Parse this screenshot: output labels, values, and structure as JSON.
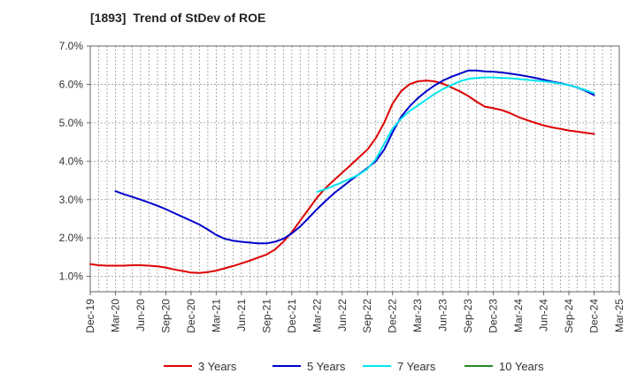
{
  "chart_data": {
    "type": "line",
    "title": "[1893]  Trend of StDev of ROE",
    "xlabel": "",
    "ylabel": "",
    "x_ticks": [
      "Dec-19",
      "Mar-20",
      "Jun-20",
      "Sep-20",
      "Dec-20",
      "Mar-21",
      "Jun-21",
      "Sep-21",
      "Dec-21",
      "Mar-22",
      "Jun-22",
      "Sep-22",
      "Dec-22",
      "Mar-23",
      "Jun-23",
      "Sep-23",
      "Dec-23",
      "Mar-24",
      "Jun-24",
      "Sep-24",
      "Dec-24",
      "Mar-25"
    ],
    "y_ticks": [
      "1.0%",
      "2.0%",
      "3.0%",
      "4.0%",
      "5.0%",
      "6.0%",
      "7.0%"
    ],
    "ylim": [
      0.6,
      7.0
    ],
    "y_unit": "%",
    "grid": true,
    "legend_position": "bottom",
    "series": [
      {
        "name": "3 Years",
        "color": "#dd0000",
        "points": [
          [
            "Dec-19",
            1.32
          ],
          [
            "Jan-20",
            1.29
          ],
          [
            "Feb-20",
            1.28
          ],
          [
            "Mar-20",
            1.28
          ],
          [
            "Apr-20",
            1.28
          ],
          [
            "May-20",
            1.29
          ],
          [
            "Jun-20",
            1.29
          ],
          [
            "Jul-20",
            1.28
          ],
          [
            "Aug-20",
            1.26
          ],
          [
            "Sep-20",
            1.23
          ],
          [
            "Oct-20",
            1.18
          ],
          [
            "Nov-20",
            1.14
          ],
          [
            "Dec-20",
            1.1
          ],
          [
            "Jan-21",
            1.09
          ],
          [
            "Feb-21",
            1.11
          ],
          [
            "Mar-21",
            1.15
          ],
          [
            "Apr-21",
            1.21
          ],
          [
            "May-21",
            1.27
          ],
          [
            "Jun-21",
            1.34
          ],
          [
            "Jul-21",
            1.41
          ],
          [
            "Aug-21",
            1.49
          ],
          [
            "Sep-21",
            1.57
          ],
          [
            "Oct-21",
            1.7
          ],
          [
            "Nov-21",
            1.9
          ],
          [
            "Dec-21",
            2.15
          ],
          [
            "Jan-22",
            2.45
          ],
          [
            "Feb-22",
            2.75
          ],
          [
            "Mar-22",
            3.05
          ],
          [
            "Apr-22",
            3.3
          ],
          [
            "May-22",
            3.5
          ],
          [
            "Jun-22",
            3.7
          ],
          [
            "Jul-22",
            3.9
          ],
          [
            "Aug-22",
            4.1
          ],
          [
            "Sep-22",
            4.3
          ],
          [
            "Oct-22",
            4.6
          ],
          [
            "Nov-22",
            5.0
          ],
          [
            "Dec-22",
            5.5
          ],
          [
            "Jan-23",
            5.82
          ],
          [
            "Feb-23",
            6.0
          ],
          [
            "Mar-23",
            6.08
          ],
          [
            "Apr-23",
            6.1
          ],
          [
            "May-23",
            6.08
          ],
          [
            "Jun-23",
            6.02
          ],
          [
            "Jul-23",
            5.92
          ],
          [
            "Aug-23",
            5.82
          ],
          [
            "Sep-23",
            5.7
          ],
          [
            "Oct-23",
            5.55
          ],
          [
            "Nov-23",
            5.42
          ],
          [
            "Dec-23",
            5.38
          ],
          [
            "Jan-24",
            5.33
          ],
          [
            "Feb-24",
            5.25
          ],
          [
            "Mar-24",
            5.15
          ],
          [
            "Apr-24",
            5.07
          ],
          [
            "May-24",
            5.0
          ],
          [
            "Jun-24",
            4.93
          ],
          [
            "Jul-24",
            4.88
          ],
          [
            "Aug-24",
            4.84
          ],
          [
            "Sep-24",
            4.8
          ],
          [
            "Oct-24",
            4.77
          ],
          [
            "Nov-24",
            4.74
          ],
          [
            "Dec-24",
            4.71
          ]
        ]
      },
      {
        "name": "5 Years",
        "color": "#0000cc",
        "points": [
          [
            "Mar-20",
            3.22
          ],
          [
            "Apr-20",
            3.14
          ],
          [
            "May-20",
            3.07
          ],
          [
            "Jun-20",
            3.0
          ],
          [
            "Jul-20",
            2.92
          ],
          [
            "Aug-20",
            2.84
          ],
          [
            "Sep-20",
            2.75
          ],
          [
            "Oct-20",
            2.65
          ],
          [
            "Nov-20",
            2.55
          ],
          [
            "Dec-20",
            2.45
          ],
          [
            "Jan-21",
            2.35
          ],
          [
            "Feb-21",
            2.22
          ],
          [
            "Mar-21",
            2.08
          ],
          [
            "Apr-21",
            1.98
          ],
          [
            "May-21",
            1.93
          ],
          [
            "Jun-21",
            1.9
          ],
          [
            "Jul-21",
            1.88
          ],
          [
            "Aug-21",
            1.86
          ],
          [
            "Sep-21",
            1.86
          ],
          [
            "Oct-21",
            1.9
          ],
          [
            "Nov-21",
            1.98
          ],
          [
            "Dec-21",
            2.12
          ],
          [
            "Jan-22",
            2.3
          ],
          [
            "Feb-22",
            2.52
          ],
          [
            "Mar-22",
            2.75
          ],
          [
            "Apr-22",
            2.96
          ],
          [
            "May-22",
            3.16
          ],
          [
            "Jun-22",
            3.33
          ],
          [
            "Jul-22",
            3.5
          ],
          [
            "Aug-22",
            3.66
          ],
          [
            "Sep-22",
            3.82
          ],
          [
            "Oct-22",
            4.0
          ],
          [
            "Nov-22",
            4.3
          ],
          [
            "Dec-22",
            4.75
          ],
          [
            "Jan-23",
            5.15
          ],
          [
            "Feb-23",
            5.42
          ],
          [
            "Mar-23",
            5.64
          ],
          [
            "Apr-23",
            5.82
          ],
          [
            "May-23",
            5.97
          ],
          [
            "Jun-23",
            6.1
          ],
          [
            "Jul-23",
            6.2
          ],
          [
            "Aug-23",
            6.28
          ],
          [
            "Sep-23",
            6.36
          ],
          [
            "Oct-23",
            6.36
          ],
          [
            "Nov-23",
            6.34
          ],
          [
            "Dec-23",
            6.33
          ],
          [
            "Jan-24",
            6.31
          ],
          [
            "Feb-24",
            6.28
          ],
          [
            "Mar-24",
            6.25
          ],
          [
            "Apr-24",
            6.21
          ],
          [
            "May-24",
            6.17
          ],
          [
            "Jun-24",
            6.12
          ],
          [
            "Jul-24",
            6.07
          ],
          [
            "Aug-24",
            6.03
          ],
          [
            "Sep-24",
            5.98
          ],
          [
            "Oct-24",
            5.92
          ],
          [
            "Nov-24",
            5.83
          ],
          [
            "Dec-24",
            5.72
          ]
        ]
      },
      {
        "name": "7 Years",
        "color": "#00e5ee",
        "points": [
          [
            "Mar-22",
            3.2
          ],
          [
            "Apr-22",
            3.27
          ],
          [
            "May-22",
            3.36
          ],
          [
            "Jun-22",
            3.45
          ],
          [
            "Jul-22",
            3.55
          ],
          [
            "Aug-22",
            3.65
          ],
          [
            "Sep-22",
            3.8
          ],
          [
            "Oct-22",
            4.05
          ],
          [
            "Nov-22",
            4.45
          ],
          [
            "Dec-22",
            4.85
          ],
          [
            "Jan-23",
            5.1
          ],
          [
            "Feb-23",
            5.3
          ],
          [
            "Mar-23",
            5.45
          ],
          [
            "Apr-23",
            5.6
          ],
          [
            "May-23",
            5.75
          ],
          [
            "Jun-23",
            5.88
          ],
          [
            "Jul-23",
            5.98
          ],
          [
            "Aug-23",
            6.08
          ],
          [
            "Sep-23",
            6.14
          ],
          [
            "Oct-23",
            6.17
          ],
          [
            "Nov-23",
            6.18
          ],
          [
            "Dec-23",
            6.18
          ],
          [
            "Jan-24",
            6.17
          ],
          [
            "Feb-24",
            6.16
          ],
          [
            "Mar-24",
            6.14
          ],
          [
            "Apr-24",
            6.12
          ],
          [
            "May-24",
            6.1
          ],
          [
            "Jun-24",
            6.08
          ],
          [
            "Jul-24",
            6.05
          ],
          [
            "Aug-24",
            6.02
          ],
          [
            "Sep-24",
            5.98
          ],
          [
            "Oct-24",
            5.92
          ],
          [
            "Nov-24",
            5.85
          ],
          [
            "Dec-24",
            5.77
          ]
        ]
      },
      {
        "name": "10 Years",
        "color": "#228b22",
        "points": []
      }
    ]
  }
}
